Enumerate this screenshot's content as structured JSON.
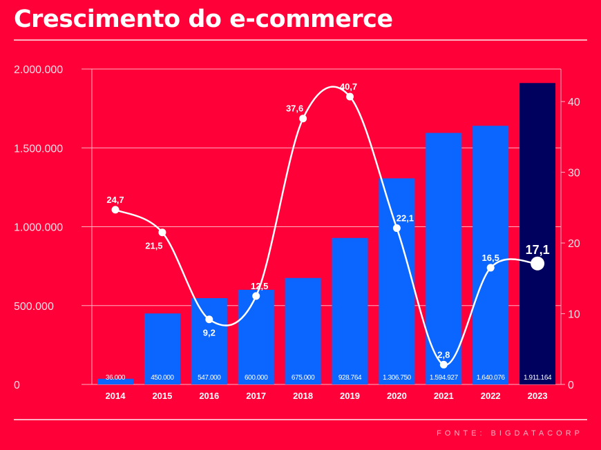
{
  "title": "Crescimento do e-commerce",
  "source": "FONTE: BIGDATACORP",
  "colors": {
    "background": "#ff0039",
    "bar": "#0a66ff",
    "bar_highlight": "#00005f",
    "line": "#ffffff",
    "grid": "#ffb3c3"
  },
  "chart_data": {
    "type": "bar+line",
    "categories": [
      "2014",
      "2015",
      "2016",
      "2017",
      "2018",
      "2019",
      "2020",
      "2021",
      "2022",
      "2023"
    ],
    "bar_series": {
      "values": [
        36000,
        450000,
        547000,
        600000,
        675000,
        928764,
        1306750,
        1594927,
        1640076,
        1911164
      ],
      "labels": [
        "36.000",
        "450.000",
        "547.000",
        "600.000",
        "675.000",
        "928.764",
        "1.306.750",
        "1.594.927",
        "1.640.076",
        "1.911.164"
      ],
      "highlight_index": 9
    },
    "line_series": {
      "values": [
        24.7,
        21.5,
        9.2,
        12.5,
        37.6,
        40.7,
        22.1,
        2.8,
        16.5,
        17.1
      ],
      "labels": [
        "24,7",
        "21,5",
        "9,2",
        "12,5",
        "37,6",
        "40,7",
        "22,1",
        "2,8",
        "16,5",
        "17,1"
      ]
    },
    "y_left": {
      "ylim": [
        0,
        2000000
      ],
      "ticks": [
        0,
        500000,
        1000000,
        1500000,
        2000000
      ],
      "tick_labels": [
        "0",
        "500.000",
        "1.000.000",
        "1.500.000",
        "2.000.000"
      ]
    },
    "y_right": {
      "ylim": [
        0,
        44.6
      ],
      "ticks": [
        0,
        10,
        20,
        30,
        40
      ],
      "tick_labels": [
        "0",
        "10",
        "20",
        "30",
        "40"
      ]
    },
    "grid": true
  }
}
